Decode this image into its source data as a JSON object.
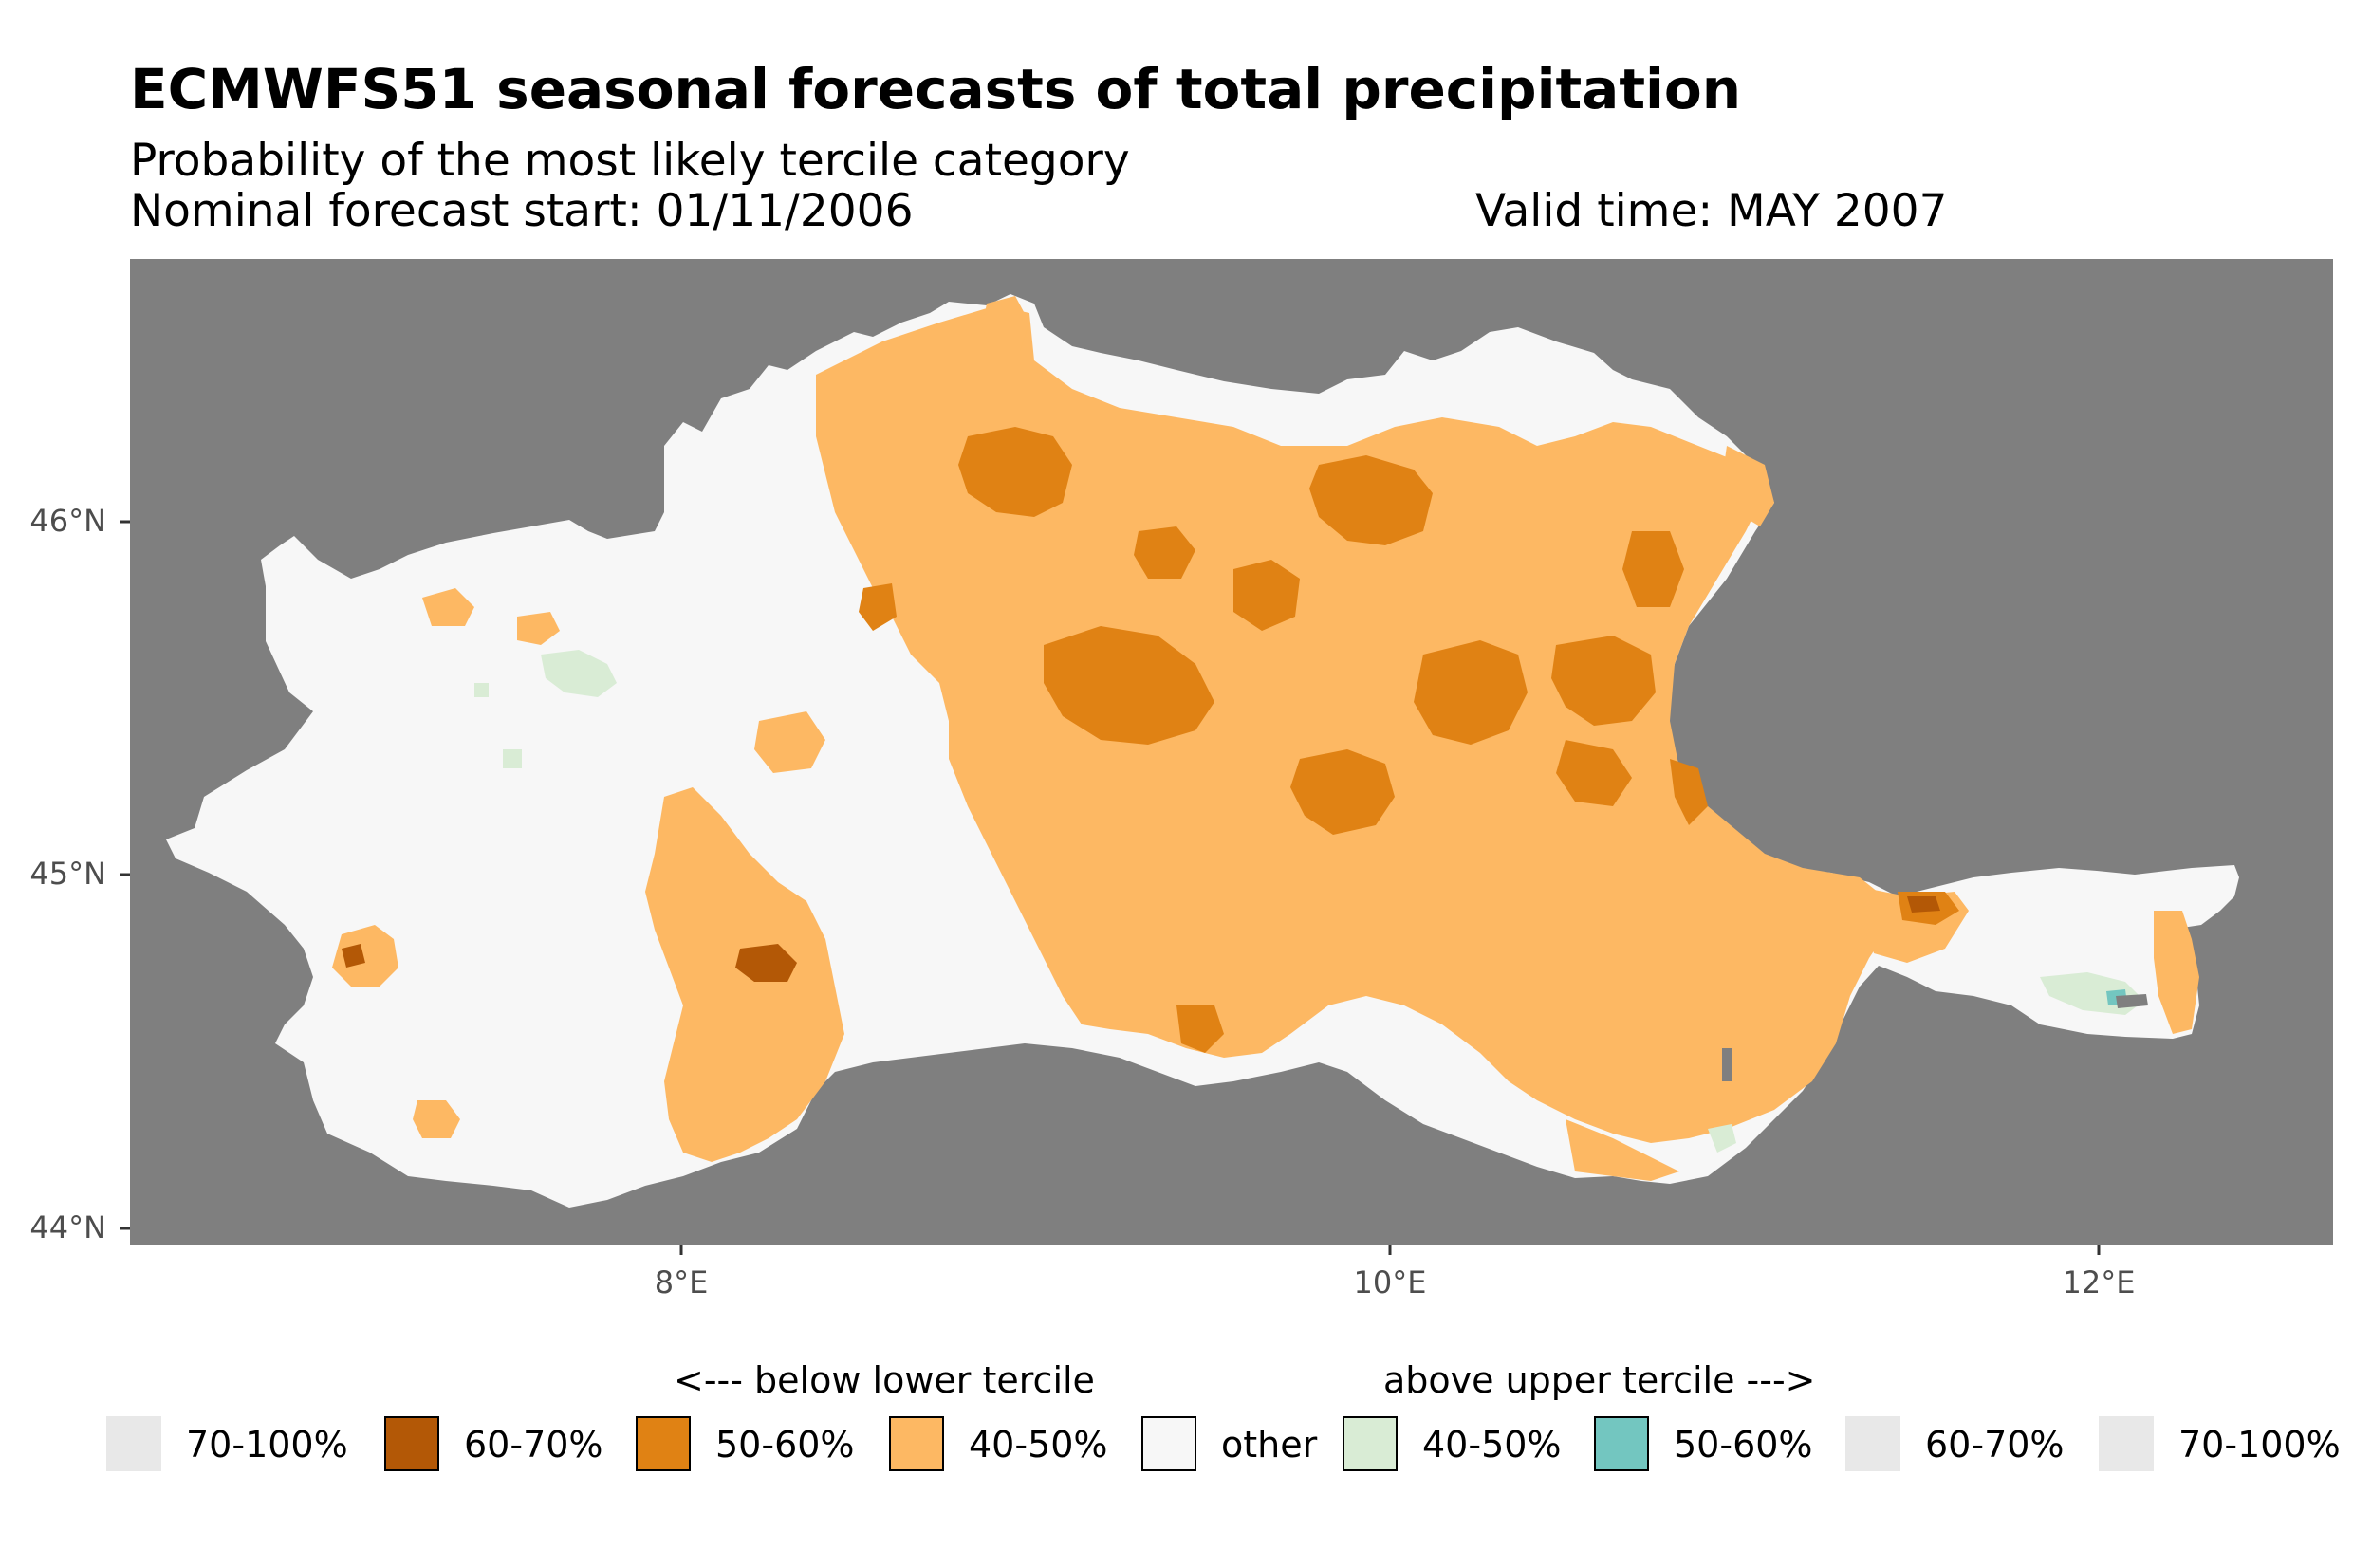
{
  "title": "ECMWFS51 seasonal forecasts of total precipitation",
  "subtitle": "Probability of the most likely tercile category",
  "forecast_start": "Nominal forecast start: 01/11/2006",
  "valid_time": "Valid time: MAY 2007",
  "axes": {
    "y_ticks": [
      "46°N",
      "45°N",
      "44°N"
    ],
    "x_ticks": [
      "8°E",
      "10°E",
      "12°E"
    ]
  },
  "legend": {
    "below_heading": "<--- below lower tercile",
    "above_heading": "above upper tercile --->",
    "items": [
      {
        "label": "70-100%",
        "color": "#e8e8e8",
        "bordered": false
      },
      {
        "label": "60-70%",
        "color": "#b35806",
        "bordered": true
      },
      {
        "label": "50-60%",
        "color": "#e08214",
        "bordered": true
      },
      {
        "label": "40-50%",
        "color": "#fdb863",
        "bordered": true
      },
      {
        "label": "other",
        "color": "#f7f7f7",
        "bordered": true
      },
      {
        "label": "40-50%",
        "color": "#d9ecd5",
        "bordered": true
      },
      {
        "label": "50-60%",
        "color": "#73c6c0",
        "bordered": true
      },
      {
        "label": "60-70%",
        "color": "#e8e8e8",
        "bordered": false
      },
      {
        "label": "70-100%",
        "color": "#e8e8e8",
        "bordered": false
      }
    ]
  },
  "colors": {
    "panel_background": "#7f7f7f",
    "land_other": "#f7f7f7",
    "below_40_50": "#fdb863",
    "below_50_60": "#e08214",
    "below_60_70": "#b35806",
    "above_40_50": "#d9ecd5",
    "above_50_60": "#73c6c0"
  }
}
